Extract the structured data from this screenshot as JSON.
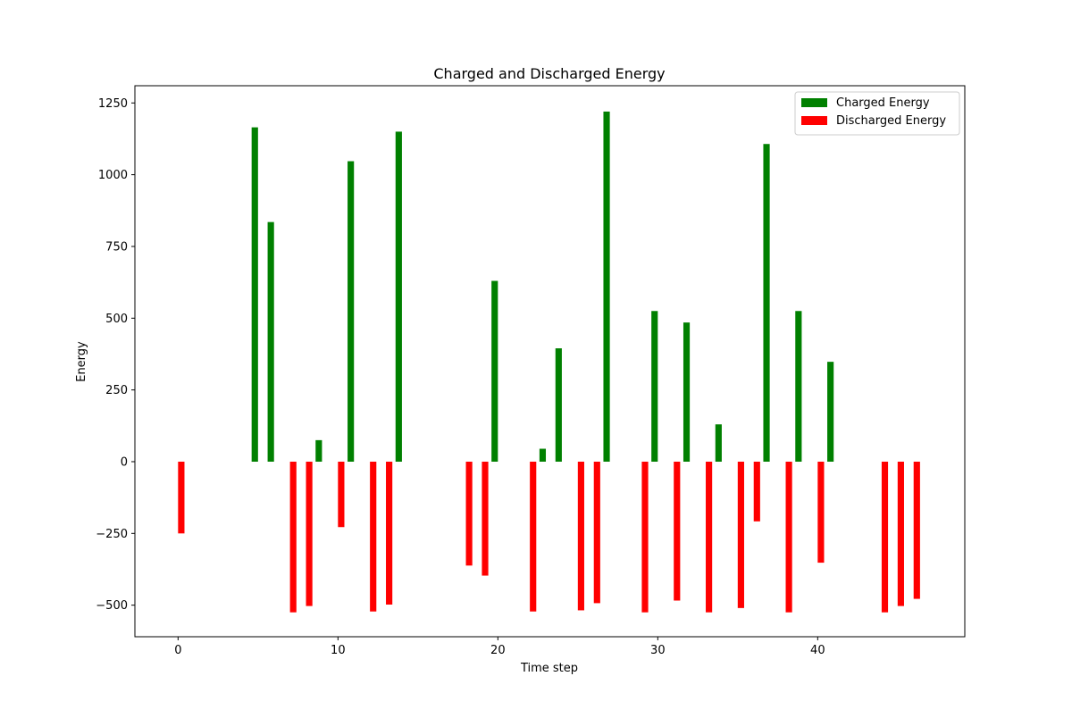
{
  "chart_data": {
    "type": "bar",
    "title": "Charged and Discharged Energy",
    "xlabel": "Time step",
    "ylabel": "Energy",
    "xlim": [
      -2.7,
      49.2
    ],
    "ylim": [
      -610,
      1310
    ],
    "xticks": [
      0,
      10,
      20,
      30,
      40
    ],
    "yticks": [
      -500,
      -250,
      0,
      250,
      500,
      750,
      1000,
      1250
    ],
    "legend_position": "top-right",
    "series": [
      {
        "name": "Charged Energy",
        "color": "#008000",
        "offset": -0.2,
        "points": [
          {
            "x": 5,
            "value": 1165
          },
          {
            "x": 6,
            "value": 835
          },
          {
            "x": 9,
            "value": 75
          },
          {
            "x": 11,
            "value": 1047
          },
          {
            "x": 14,
            "value": 1150
          },
          {
            "x": 20,
            "value": 630
          },
          {
            "x": 23,
            "value": 45
          },
          {
            "x": 24,
            "value": 395
          },
          {
            "x": 27,
            "value": 1220
          },
          {
            "x": 30,
            "value": 525
          },
          {
            "x": 32,
            "value": 485
          },
          {
            "x": 34,
            "value": 130
          },
          {
            "x": 37,
            "value": 1107
          },
          {
            "x": 39,
            "value": 525
          },
          {
            "x": 41,
            "value": 348
          }
        ]
      },
      {
        "name": "Discharged Energy",
        "color": "#ff0000",
        "offset": 0.2,
        "points": [
          {
            "x": 0,
            "value": -250
          },
          {
            "x": 7,
            "value": -525
          },
          {
            "x": 8,
            "value": -503
          },
          {
            "x": 10,
            "value": -228
          },
          {
            "x": 12,
            "value": -522
          },
          {
            "x": 13,
            "value": -498
          },
          {
            "x": 18,
            "value": -362
          },
          {
            "x": 19,
            "value": -397
          },
          {
            "x": 22,
            "value": -522
          },
          {
            "x": 25,
            "value": -518
          },
          {
            "x": 26,
            "value": -493
          },
          {
            "x": 29,
            "value": -525
          },
          {
            "x": 31,
            "value": -484
          },
          {
            "x": 33,
            "value": -525
          },
          {
            "x": 35,
            "value": -510
          },
          {
            "x": 36,
            "value": -208
          },
          {
            "x": 38,
            "value": -525
          },
          {
            "x": 40,
            "value": -352
          },
          {
            "x": 44,
            "value": -525
          },
          {
            "x": 45,
            "value": -503
          },
          {
            "x": 46,
            "value": -478
          }
        ]
      }
    ]
  }
}
